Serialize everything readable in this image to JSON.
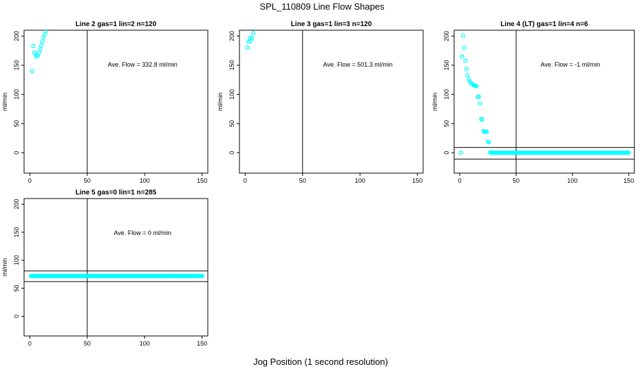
{
  "figure": {
    "title": "SPL_110809  Line Flow Shapes",
    "xlabel": "Jog Position (1 second resolution)"
  },
  "style": {
    "point_color": "#00ffff",
    "line_color": "#000000",
    "background": "#ffffff"
  },
  "chart_data": [
    {
      "type": "scatter",
      "title": "Line 2 gas=1 lin=2 n=120",
      "ylabel": "ml/min",
      "xlim": [
        -5,
        155
      ],
      "ylim": [
        -35,
        210
      ],
      "xticks": [
        0,
        50,
        100,
        150
      ],
      "yticks": [
        0,
        50,
        100,
        150,
        200
      ],
      "annotation": "Ave. Flow =  332.8  ml/min",
      "vlines": [
        50
      ],
      "hlines": [],
      "points": {
        "x": [
          2,
          3,
          4,
          5,
          6,
          7,
          8,
          9,
          10,
          11,
          12,
          13,
          14
        ],
        "y": [
          140,
          183,
          172,
          168,
          165,
          167,
          172,
          178,
          184,
          191,
          198,
          203,
          208
        ]
      },
      "flat_segment": null
    },
    {
      "type": "scatter",
      "title": "Line 3 gas=1 lin=3 n=120",
      "ylabel": "ml/min",
      "xlim": [
        -5,
        155
      ],
      "ylim": [
        -35,
        210
      ],
      "xticks": [
        0,
        50,
        100,
        150
      ],
      "yticks": [
        0,
        50,
        100,
        150,
        200
      ],
      "annotation": "Ave. Flow =  501.3  ml/min",
      "vlines": [
        50
      ],
      "hlines": [],
      "points": {
        "x": [
          2,
          3,
          4,
          5,
          6,
          7
        ],
        "y": [
          180,
          190,
          196,
          192,
          197,
          205
        ]
      },
      "flat_segment": null
    },
    {
      "type": "scatter",
      "title": "Line 4 (LT) gas=1 lin=4 n=6",
      "ylabel": "ml/min",
      "xlim": [
        -5,
        155
      ],
      "ylim": [
        -35,
        210
      ],
      "xticks": [
        0,
        50,
        100,
        150
      ],
      "yticks": [
        0,
        50,
        100,
        150,
        200
      ],
      "annotation": "Ave. Flow =  -1  ml/min",
      "vlines": [
        50
      ],
      "hlines": [
        9,
        -11
      ],
      "points": {
        "x": [
          1,
          2,
          3,
          4,
          5,
          6,
          7,
          8,
          9,
          10,
          11,
          12,
          13,
          14,
          15,
          16,
          17,
          18,
          19,
          20,
          21,
          22,
          23,
          24,
          25,
          26,
          27,
          28,
          29
        ],
        "y": [
          0,
          165,
          201,
          180,
          158,
          143,
          133,
          126,
          122,
          119,
          118,
          116,
          115,
          115,
          114,
          96,
          96,
          84,
          58,
          57,
          37,
          36,
          36,
          36,
          19,
          18,
          1,
          0,
          0
        ]
      },
      "flat_segment": {
        "from": 29,
        "to": 150,
        "step": 1,
        "y": 0
      }
    },
    {
      "type": "scatter",
      "title": "Line 5 gas=0 lin=1 n=285",
      "ylabel": "ml/min",
      "xlim": [
        -5,
        155
      ],
      "ylim": [
        -35,
        210
      ],
      "xticks": [
        0,
        50,
        100,
        150
      ],
      "yticks": [
        0,
        50,
        100,
        150,
        200
      ],
      "annotation": "Ave. Flow =  0  ml/min",
      "vlines": [
        50
      ],
      "hlines": [
        81,
        62
      ],
      "points": {
        "x": [],
        "y": []
      },
      "flat_segment": {
        "from": 1,
        "to": 150,
        "step": 0.5,
        "y": 72
      }
    }
  ]
}
